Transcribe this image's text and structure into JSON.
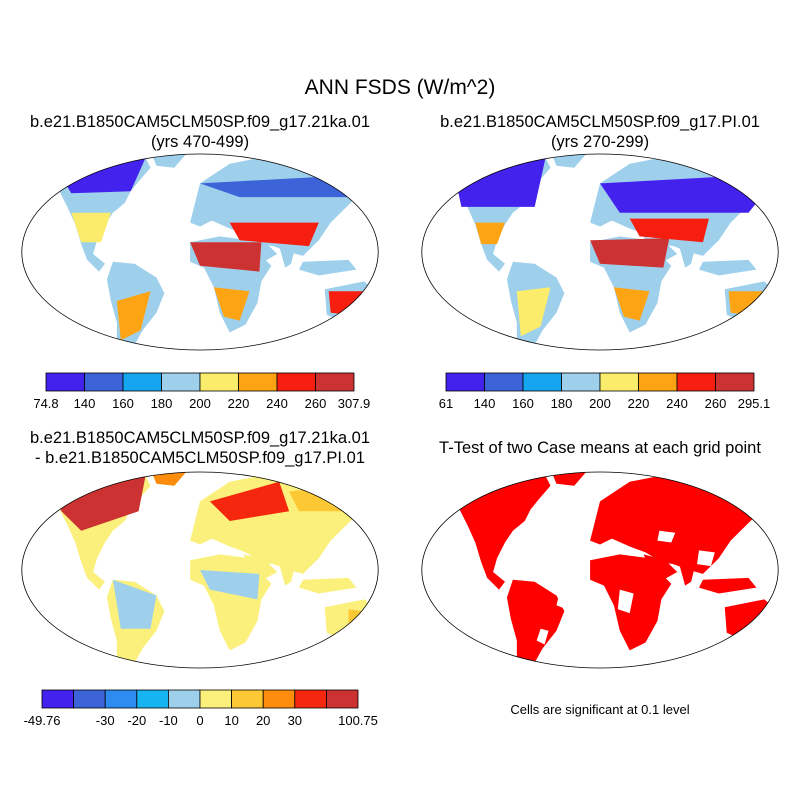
{
  "title": "ANN FSDS (W/m^2)",
  "panels": {
    "top_left": {
      "title_line1": "b.e21.B1850CAM5CLM50SP.f09_g17.21ka.01",
      "title_line2": "(yrs 470-499)",
      "colorbar": {
        "labels": [
          "74.8",
          "140",
          "160",
          "180",
          "200",
          "220",
          "240",
          "260",
          "307.9"
        ],
        "colors": [
          "#4422ee",
          "#3c64d8",
          "#16a6f0",
          "#9ed0ec",
          "#fcec6c",
          "#fca414",
          "#f51e0f",
          "#cd3232"
        ]
      }
    },
    "top_right": {
      "title_line1": "b.e21.B1850CAM5CLM50SP.f09_g17.PI.01",
      "title_line2": "(yrs 270-299)",
      "colorbar": {
        "labels": [
          "61",
          "140",
          "160",
          "180",
          "200",
          "220",
          "240",
          "260",
          "295.1"
        ],
        "colors": [
          "#4422ee",
          "#3c64d8",
          "#16a6f0",
          "#9ed0ec",
          "#fcec6c",
          "#fca414",
          "#f51e0f",
          "#cd3232"
        ]
      }
    },
    "bottom_left": {
      "title_line1": "b.e21.B1850CAM5CLM50SP.f09_g17.21ka.01",
      "title_line2": "- b.e21.B1850CAM5CLM50SP.f09_g17.PI.01",
      "colorbar": {
        "labels": [
          "-49.76",
          "-30",
          "-20",
          "-10",
          "0",
          "10",
          "20",
          "30",
          "100.75"
        ],
        "label_slots": [
          0,
          2,
          3,
          4,
          5,
          6,
          7,
          8,
          10
        ],
        "colors": [
          "#4422ee",
          "#3c64d8",
          "#2c8cf0",
          "#16b4f0",
          "#9ed0ec",
          "#fcf07c",
          "#fcc834",
          "#fc8c0c",
          "#f5280f",
          "#cd3232"
        ]
      }
    },
    "bottom_right": {
      "title": "T-Test of two Case means at each grid point",
      "note": "Cells are significant at 0.1 level"
    }
  }
}
